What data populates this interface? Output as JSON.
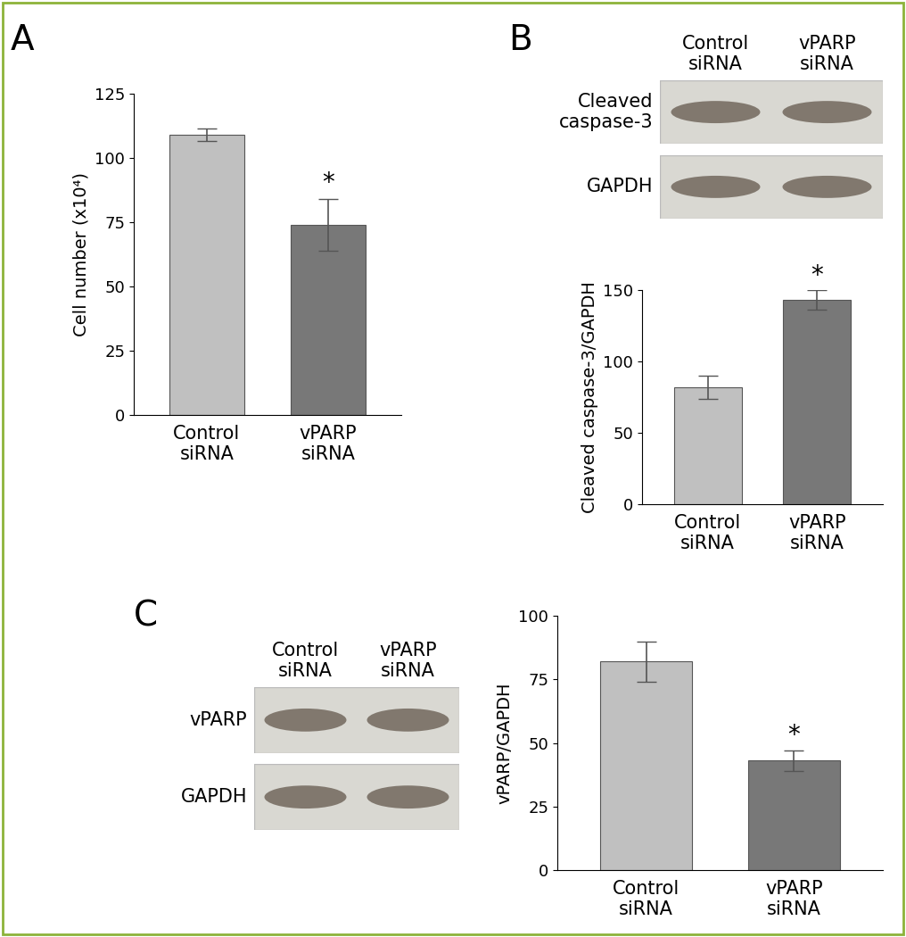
{
  "chart_data": [
    {
      "type": "bar",
      "panel": "A",
      "y_label": "Cell number (x10⁴)",
      "categories": [
        "Control\nsiRNA",
        "vPARP\nsiRNA"
      ],
      "values": [
        109,
        74
      ],
      "errors": [
        2.5,
        10
      ],
      "colors": [
        "#c0c0c0",
        "#787878"
      ],
      "ylim": [
        0,
        125
      ],
      "yticks": [
        0,
        25,
        50,
        75,
        100,
        125
      ],
      "annotations": [
        {
          "text": "*",
          "category": "vPARP\nsiRNA"
        }
      ]
    },
    {
      "type": "bar",
      "panel": "B",
      "y_label": "Cleaved caspase-3/GAPDH",
      "categories": [
        "Control\nsiRNA",
        "vPARP\nsiRNA"
      ],
      "values": [
        82,
        143
      ],
      "errors": [
        8,
        7
      ],
      "colors": [
        "#c0c0c0",
        "#787878"
      ],
      "ylim": [
        0,
        150
      ],
      "yticks": [
        0,
        50,
        100,
        150
      ],
      "annotations": [
        {
          "text": "*",
          "category": "vPARP\nsiRNA"
        }
      ]
    },
    {
      "type": "bar",
      "panel": "C",
      "y_label": "vPARP/GAPDH",
      "categories": [
        "Control\nsiRNA",
        "vPARP\nsiRNA"
      ],
      "values": [
        82,
        43
      ],
      "errors": [
        8,
        4
      ],
      "colors": [
        "#c0c0c0",
        "#787878"
      ],
      "ylim": [
        0,
        100
      ],
      "yticks": [
        0,
        25,
        50,
        75,
        100
      ],
      "annotations": [
        {
          "text": "*",
          "category": "vPARP\nsiRNA"
        }
      ]
    }
  ],
  "blots": [
    {
      "panel": "B",
      "lanes": [
        "Control\nsiRNA",
        "vPARP\nsiRNA"
      ],
      "rows": [
        "Cleaved\ncaspase-3",
        "GAPDH"
      ]
    },
    {
      "panel": "C",
      "lanes": [
        "Control\nsiRNA",
        "vPARP\nsiRNA"
      ],
      "rows": [
        "vPARP",
        "GAPDH"
      ]
    }
  ]
}
